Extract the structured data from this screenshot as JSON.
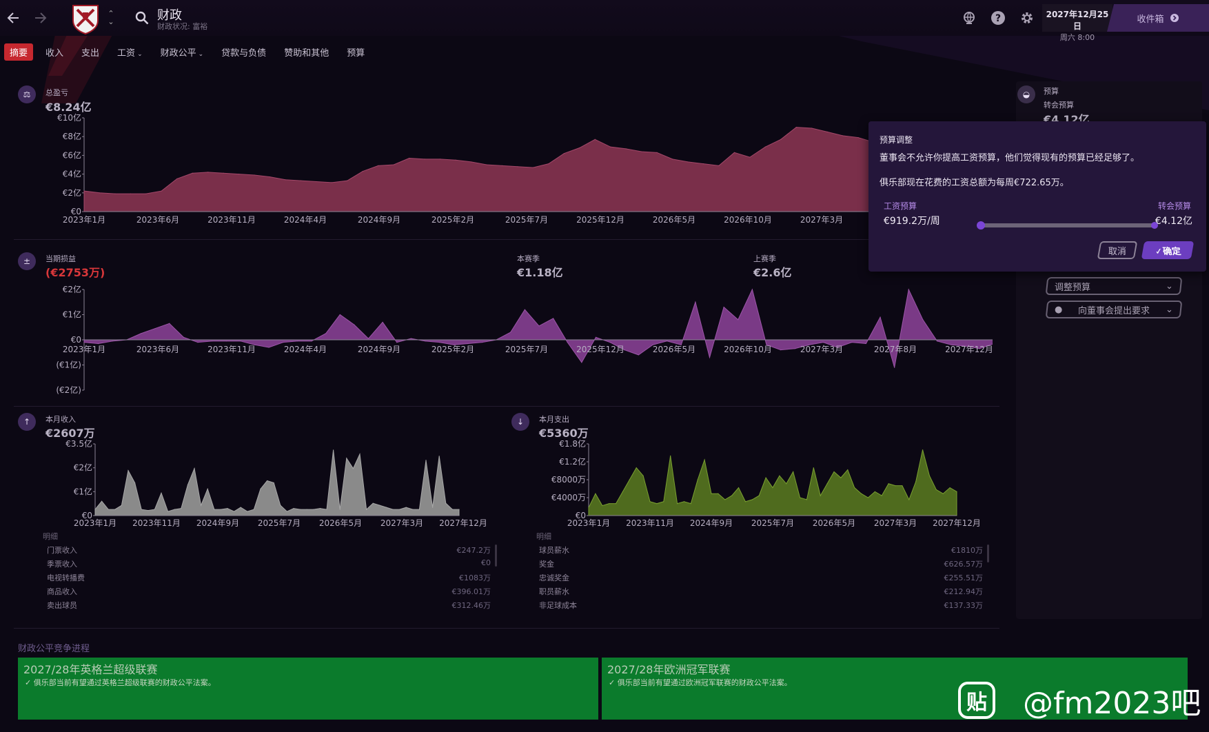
{
  "header": {
    "title": "财政",
    "subtitle": "财政状况: 富裕",
    "date": "2027年12月25日",
    "time": "周六 8:00",
    "inbox_label": "收件箱"
  },
  "tabs": [
    {
      "label": "摘要",
      "active": true
    },
    {
      "label": "收入"
    },
    {
      "label": "支出"
    },
    {
      "label": "工资",
      "dropdown": true
    },
    {
      "label": "财政公平",
      "dropdown": true
    },
    {
      "label": "贷款与负债"
    },
    {
      "label": "赞助和其他"
    },
    {
      "label": "预算"
    }
  ],
  "total_pl": {
    "label": "总盈亏",
    "value": "€8.24亿",
    "y_ticks": [
      "€10亿",
      "€8亿",
      "€6亿",
      "€4亿",
      "€2亿",
      "€0"
    ],
    "x_ticks": [
      "2023年1月",
      "2023年6月",
      "2023年11月",
      "2024年4月",
      "2024年9月",
      "2025年2月",
      "2025年7月",
      "2025年12月",
      "2026年5月",
      "2026年10月",
      "2027年3月"
    ]
  },
  "period_pl": {
    "label": "当期损益",
    "value": "(€2753万)",
    "season_label": "本赛季",
    "season_value": "€1.18亿",
    "last_label": "上赛季",
    "last_value": "€2.6亿",
    "y_ticks": [
      "€2亿",
      "€1亿",
      "€0",
      "(€1亿)",
      "(€2亿)"
    ],
    "x_ticks": [
      "2023年1月",
      "2023年6月",
      "2023年11月",
      "2024年4月",
      "2024年9月",
      "2025年2月",
      "2025年7月",
      "2025年12月",
      "2026年5月",
      "2026年10月",
      "2027年3月",
      "2027年8月",
      "2027年12月"
    ]
  },
  "income": {
    "label": "本月收入",
    "value": "€2607万",
    "y_ticks": [
      "€3.5亿",
      "€2亿",
      "€1亿",
      "€0"
    ],
    "x_ticks": [
      "2023年1月",
      "2023年11月",
      "2024年9月",
      "2025年7月",
      "2026年5月",
      "2027年3月",
      "2027年12月"
    ],
    "detail_title": "明细",
    "details": [
      {
        "name": "门票收入",
        "value": "€247.2万"
      },
      {
        "name": "季票收入",
        "value": "€0"
      },
      {
        "name": "电视转播费",
        "value": "€1083万"
      },
      {
        "name": "商品收入",
        "value": "€396.01万"
      },
      {
        "name": "卖出球员",
        "value": "€312.46万"
      }
    ]
  },
  "expense": {
    "label": "本月支出",
    "value": "€5360万",
    "y_ticks": [
      "€1.8亿",
      "€1.2亿",
      "€8000万",
      "€4000万",
      "€0"
    ],
    "x_ticks": [
      "2023年1月",
      "2023年11月",
      "2024年9月",
      "2025年7月",
      "2026年5月",
      "2027年3月",
      "2027年12月"
    ],
    "detail_title": "明细",
    "details": [
      {
        "name": "球员薪水",
        "value": "€1810万"
      },
      {
        "name": "奖金",
        "value": "€626.57万"
      },
      {
        "name": "忠诚奖金",
        "value": "€255.51万"
      },
      {
        "name": "职员薪水",
        "value": "€212.94万"
      },
      {
        "name": "非足球成本",
        "value": "€137.33万"
      }
    ]
  },
  "budget_panel": {
    "label": "预算",
    "transfer_label": "转会预算",
    "transfer_value": "€4.12亿",
    "adjust_dropdown": "调整预算",
    "request_dropdown": "向董事会提出要求"
  },
  "popup": {
    "title": "预算调整",
    "message1": "董事会不允许你提高工资预算，他们觉得现有的预算已经足够了。",
    "message2": "俱乐部现在花费的工资总额为每周€722.65万。",
    "wage_label": "工资预算",
    "wage_value": "€919.2万/周",
    "transfer_label": "转会预算",
    "transfer_value": "€4.12亿",
    "slider_fraction": 0,
    "cancel_label": "取消",
    "ok_label": "确定"
  },
  "ffp": {
    "title": "财政公平竞争进程",
    "cards": [
      {
        "heading": "2027/28年英格兰超级联赛",
        "text": "俱乐部当前有望通过英格兰超级联赛的财政公平法案。"
      },
      {
        "heading": "2027/28年欧洲冠军联赛",
        "text": "俱乐部当前有望通过欧洲冠军联赛的财政公平法案。"
      }
    ]
  },
  "watermark": {
    "logo": "贴",
    "text": "@fm2023吧"
  },
  "colors": {
    "accent": "#c6282f",
    "purple": "#6c3ec0",
    "pl_fill": "#7a2f4a",
    "period_fill": "#7a3a86",
    "income_fill": "#8a8a8a",
    "expense_fill": "#4f6b1e",
    "ffp_green": "#0b7b2c"
  },
  "chart_data": [
    {
      "type": "area",
      "title": "总盈亏",
      "ylim": [
        0,
        10
      ],
      "unit": "亿€",
      "x": [
        "2023-01",
        "2023-02",
        "2023-03",
        "2023-04",
        "2023-05",
        "2023-06",
        "2023-07",
        "2023-08",
        "2023-09",
        "2023-10",
        "2023-11",
        "2023-12",
        "2024-01",
        "2024-02",
        "2024-03",
        "2024-04",
        "2024-05",
        "2024-06",
        "2024-07",
        "2024-08",
        "2024-09",
        "2024-10",
        "2024-11",
        "2024-12",
        "2025-01",
        "2025-02",
        "2025-03",
        "2025-04",
        "2025-05",
        "2025-06",
        "2025-07",
        "2025-08",
        "2025-09",
        "2025-10",
        "2025-11",
        "2025-12",
        "2026-01",
        "2026-02",
        "2026-03",
        "2026-04",
        "2026-05",
        "2026-06",
        "2026-07",
        "2026-08",
        "2026-09",
        "2026-10",
        "2026-11",
        "2026-12",
        "2027-01",
        "2027-02",
        "2027-03",
        "2027-04",
        "2027-05"
      ],
      "values": [
        2.2,
        2.0,
        1.9,
        1.9,
        1.9,
        2.2,
        3.5,
        4.1,
        4.2,
        4.1,
        4.0,
        3.9,
        3.7,
        3.4,
        3.3,
        3.2,
        3.1,
        3.3,
        4.3,
        4.9,
        5.0,
        5.7,
        5.6,
        5.6,
        5.5,
        5.3,
        5.0,
        4.9,
        4.8,
        4.7,
        5.1,
        6.2,
        6.8,
        7.7,
        6.9,
        6.7,
        6.4,
        6.3,
        5.6,
        5.3,
        5.1,
        4.9,
        6.3,
        5.8,
        6.9,
        7.7,
        9.0,
        8.9,
        8.5,
        8.1,
        7.9,
        7.4,
        7.0
      ]
    },
    {
      "type": "area",
      "title": "当期损益",
      "ylim": [
        -2,
        2
      ],
      "unit": "亿€",
      "values": [
        -0.1,
        -0.15,
        -0.05,
        0.0,
        0.25,
        0.45,
        0.65,
        0.1,
        -0.1,
        -0.05,
        -0.05,
        -0.05,
        -0.2,
        -0.3,
        -0.1,
        -0.05,
        -0.05,
        0.25,
        1.0,
        0.6,
        0.05,
        0.7,
        -0.1,
        0.05,
        -0.05,
        -0.1,
        -0.2,
        -0.15,
        -0.1,
        0.0,
        0.3,
        1.2,
        0.55,
        0.85,
        -0.1,
        -0.9,
        0.1,
        -0.1,
        -0.4,
        -0.6,
        -0.2,
        -0.05,
        -0.2,
        1.5,
        -0.7,
        1.3,
        0.8,
        2.0,
        -0.2,
        -0.4,
        -0.35,
        -0.2,
        -0.1,
        -0.3,
        -0.1,
        -0.15,
        0.9,
        -1.1,
        2.0,
        0.8,
        -0.05,
        -0.2,
        -0.25,
        -0.35,
        -0.15
      ]
    },
    {
      "type": "area",
      "title": "本月收入",
      "ylim": [
        0,
        3.5
      ],
      "unit": "亿€",
      "values": [
        0.3,
        0.7,
        0.3,
        0.3,
        0.5,
        2.2,
        1.6,
        0.3,
        0.25,
        0.3,
        1.1,
        0.2,
        0.3,
        0.35,
        1.5,
        2.3,
        0.5,
        1.3,
        0.3,
        0.3,
        0.35,
        0.2,
        0.4,
        0.2,
        0.3,
        1.3,
        1.7,
        1.6,
        0.5,
        0.2,
        0.35,
        0.3,
        0.3,
        0.3,
        0.35,
        0.3,
        3.2,
        0.3,
        2.8,
        2.3,
        3.0,
        0.3,
        0.6,
        0.5,
        0.4,
        0.3,
        0.3,
        0.4,
        0.3,
        0.3,
        2.7,
        0.4,
        2.9,
        0.6,
        0.3,
        0.3
      ]
    },
    {
      "type": "area",
      "title": "本月支出",
      "ylim": [
        0,
        1.8
      ],
      "unit": "亿€",
      "values": [
        0.2,
        0.55,
        0.25,
        0.3,
        0.3,
        0.6,
        0.9,
        1.2,
        1.0,
        0.35,
        0.3,
        0.35,
        1.5,
        0.3,
        0.35,
        0.3,
        0.9,
        1.4,
        0.55,
        0.55,
        0.4,
        0.5,
        0.7,
        0.35,
        0.4,
        0.5,
        0.95,
        0.7,
        1.0,
        0.8,
        1.1,
        0.45,
        0.4,
        1.2,
        0.5,
        0.8,
        1.1,
        0.95,
        1.15,
        0.7,
        0.55,
        0.45,
        0.6,
        0.5,
        0.8,
        0.75,
        0.75,
        0.4,
        0.85,
        1.65,
        1.0,
        0.65,
        0.55,
        0.7,
        0.6
      ]
    }
  ]
}
